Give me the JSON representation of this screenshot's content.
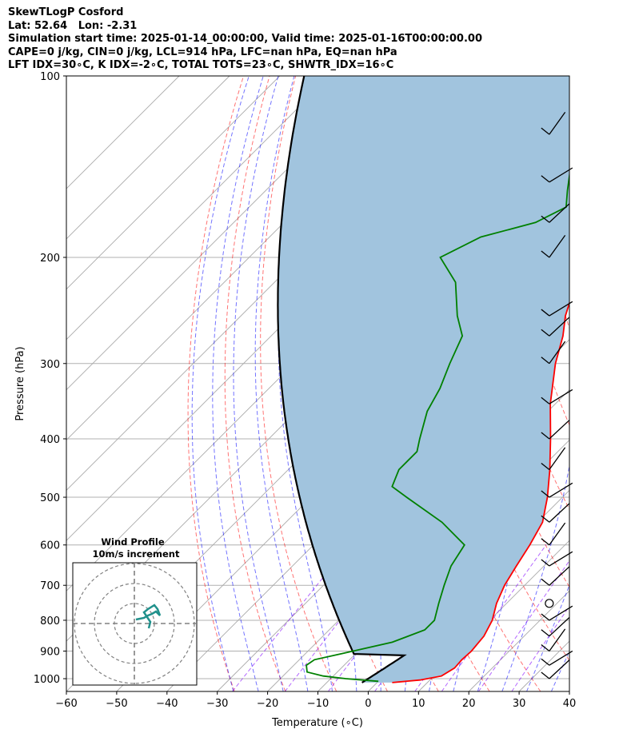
{
  "header": {
    "line1": "SkewTLogP Cosford",
    "line2": "Lat: 52.64   Lon: -2.31",
    "line3": "Simulation start time: 2025-01-14_00:00:00, Valid time: 2025-01-16T00:00:00.00",
    "line4": "CAPE=0 j/kg, CIN=0 j/kg, LCL=914 hPa, LFC=nan hPa, EQ=nan hPa",
    "line5": "LFT IDX=30∘C, K IDX=-2∘C, TOTAL TOTS=23∘C, SHWTR_IDX=16∘C"
  },
  "chart_data": {
    "type": "skewt",
    "xlabel": "Temperature (∘C)",
    "ylabel": "Pressure (hPa)",
    "xlim": [
      -60,
      40
    ],
    "ylim": [
      1050,
      100
    ],
    "x_ticks": [
      -60,
      -50,
      -40,
      -30,
      -20,
      -10,
      0,
      10,
      20,
      30,
      40
    ],
    "x_tick_labels": [
      "−60",
      "−50",
      "−40",
      "−30",
      "−20",
      "−10",
      "0",
      "10",
      "20",
      "30",
      "40"
    ],
    "y_ticks": [
      1000,
      900,
      800,
      700,
      600,
      500,
      400,
      300,
      200,
      100
    ],
    "y_tick_labels": [
      "1000",
      "900",
      "800",
      "700",
      "600",
      "500",
      "400",
      "300",
      "200",
      "100"
    ],
    "temperature": {
      "name": "Temperature",
      "color": "#ff0000",
      "p": [
        1015,
        1005,
        990,
        960,
        930,
        900,
        850,
        800,
        750,
        700,
        650,
        600,
        550,
        500,
        450,
        400,
        350,
        300,
        270,
        250,
        230,
        220,
        210,
        200,
        180,
        165,
        150,
        130,
        115,
        100
      ],
      "t": [
        3,
        8,
        11.5,
        12.5,
        12.3,
        12.5,
        12,
        10.5,
        8,
        6,
        4.5,
        3,
        1,
        -3,
        -8,
        -14,
        -21,
        -28,
        -32,
        -35.5,
        -38.5,
        -41,
        -43,
        -45,
        -49,
        -53,
        -55,
        -58,
        -62,
        -67
      ]
    },
    "dewpoint": {
      "name": "Dewpoint",
      "color": "#008000",
      "p": [
        1010,
        1000,
        990,
        975,
        950,
        930,
        910,
        870,
        830,
        800,
        750,
        700,
        650,
        600,
        550,
        500,
        480,
        450,
        420,
        400,
        360,
        330,
        300,
        270,
        250,
        220,
        200,
        185,
        175,
        165,
        155,
        145,
        130,
        115,
        100
      ],
      "t": [
        0,
        -7,
        -12,
        -16,
        -17.5,
        -17,
        -13,
        -5,
        -1,
        -1,
        -3.5,
        -6,
        -8.5,
        -10,
        -19,
        -31,
        -36,
        -38,
        -38,
        -40,
        -44,
        -46,
        -49,
        -52,
        -57,
        -64,
        -72,
        -68,
        -60,
        -57,
        -60,
        -63,
        -67,
        -71,
        -76
      ]
    },
    "parcel": {
      "name": "Parcel profile",
      "color": "#000000",
      "p": [
        1015,
        1000,
        960,
        930,
        914
      ],
      "t": [
        -3,
        -2.5,
        -1.5,
        -0.5,
        0
      ]
    },
    "hodograph": {
      "title": "Wind Profile",
      "subtitle": "10m/s increment",
      "rings_ms": [
        10,
        20,
        30
      ]
    },
    "barb_staff_temperature": 36,
    "barb_pressures": [
      1000,
      950,
      900,
      850,
      800,
      750,
      700,
      650,
      600,
      550,
      500,
      450,
      400,
      350,
      300,
      270,
      250,
      200,
      175,
      150,
      125
    ],
    "lines": {
      "isotherm_color": "#aaaaaa",
      "dry_adiabat_color": "#ff0000",
      "moist_adiabat_color": "#0000ff",
      "mixing_ratio_color": "#8000ff",
      "fill_color": "#a1c4de"
    }
  }
}
